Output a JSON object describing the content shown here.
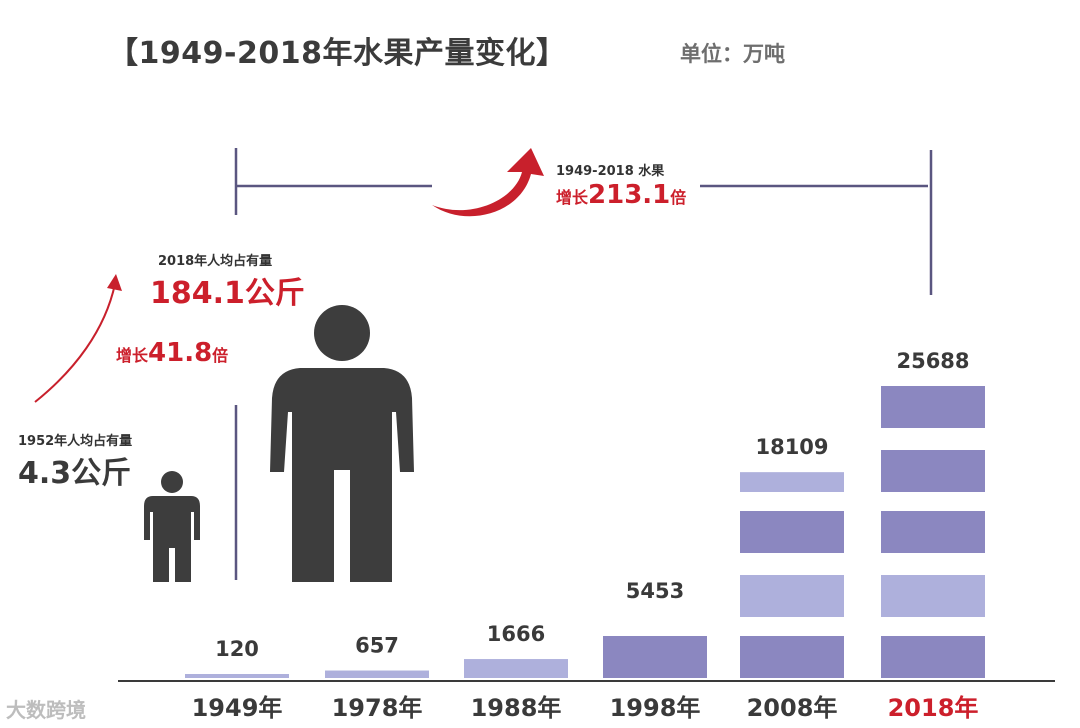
{
  "title": "【1949-2018年水果产量变化】",
  "unit": "单位：万吨",
  "growth_total": {
    "caption": "1949-2018  水果",
    "prefix": "增长",
    "value": "213.1",
    "suffix": "倍"
  },
  "per_capita_2018": {
    "caption": "2018年人均占有量",
    "value": "184.1公斤"
  },
  "per_capita_growth": {
    "prefix": "增长",
    "value": "41.8",
    "suffix": "倍"
  },
  "per_capita_1952": {
    "caption": "1952年人均占有量",
    "value": "4.3公斤"
  },
  "watermark": "大数跨境",
  "colors": {
    "bar_dark": "#8b87c0",
    "bar_light": "#aeb0dc",
    "text_red": "#cc1f2b",
    "figure": "#3d3d3d",
    "axis": "#3a3a3a",
    "bracket": "#5a5680"
  },
  "chart_data": {
    "type": "bar",
    "categories": [
      "1949年",
      "1978年",
      "1988年",
      "1998年",
      "2008年",
      "2018年"
    ],
    "values": [
      120,
      657,
      1666,
      5453,
      18109,
      25688
    ],
    "value_labels": [
      "120",
      "657",
      "1666",
      "5453",
      "18109",
      "25688"
    ],
    "highlight_category": "2018年",
    "ylim": [
      0,
      25688
    ],
    "grid": false,
    "title": "【1949-2018年水果产量变化】",
    "unit": "单位：万吨"
  }
}
